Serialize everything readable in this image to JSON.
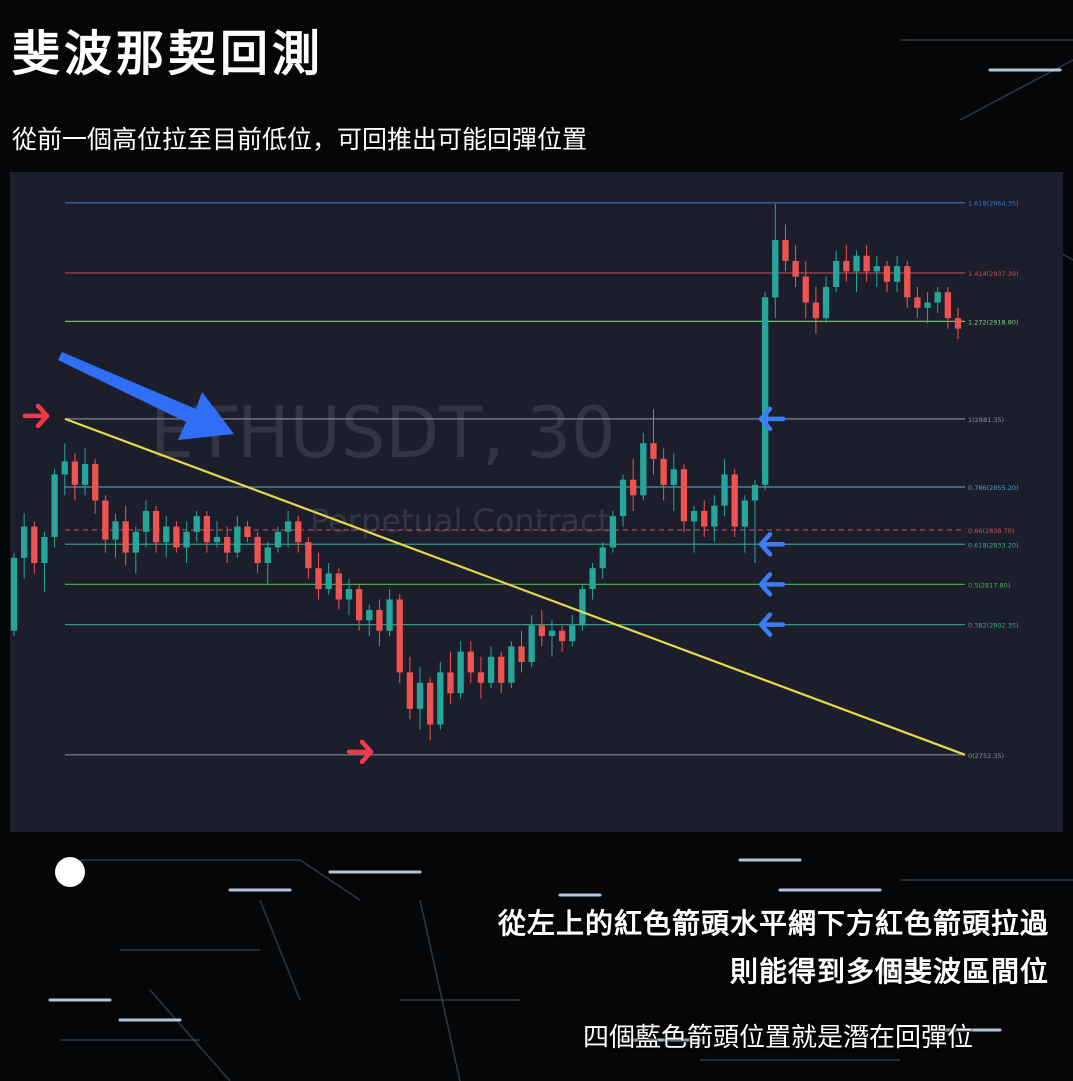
{
  "header": {
    "title": "斐波那契回測",
    "subtitle": "從前一個高位拉至目前低位，可回推出可能回彈位置"
  },
  "notes": {
    "line1": "從左上的紅色箭頭水平網下方紅色箭頭拉過",
    "line2": "則能得到多個斐波區間位",
    "line3": "四個藍色箭頭位置就是潛在回彈位"
  },
  "chart_data": {
    "type": "candlestick",
    "watermark": {
      "symbol": "ETHUSDT, 30",
      "subtitle": "Perpetual Contract"
    },
    "y_range": [
      2740,
      2970
    ],
    "fib_levels": [
      {
        "label": "1.618(2964.35)",
        "price": 2964.35,
        "color": "#3b6fd6"
      },
      {
        "label": "1.414(2937.39)",
        "price": 2937.39,
        "color": "#c0505e"
      },
      {
        "label": "1.272(2918.80)",
        "price": 2918.8,
        "color": "#7ed07e"
      },
      {
        "label": "1(2881.35)",
        "price": 2881.35,
        "color": "#8a8f9c"
      },
      {
        "label": "0.786(2855.20)",
        "price": 2855.2,
        "color": "#4f9fd0"
      },
      {
        "label": "0.66(2838.70)",
        "price": 2838.7,
        "color": "#c0505e",
        "dashed": true
      },
      {
        "label": "0.618(2833.20)",
        "price": 2833.2,
        "color": "#3aa58a"
      },
      {
        "label": "0.5(2817.80)",
        "price": 2817.8,
        "color": "#4caf50"
      },
      {
        "label": "0.382(2802.35)",
        "price": 2802.35,
        "color": "#3aa58a"
      },
      {
        "label": "0(2752.35)",
        "price": 2752.35,
        "color": "#8a8f9c"
      }
    ],
    "trendline": {
      "from_price": 2881.35,
      "to_price": 2752.35,
      "color": "#e6d84a"
    },
    "candles": [
      [
        2800,
        2830,
        2798,
        2828
      ],
      [
        2828,
        2845,
        2820,
        2840
      ],
      [
        2840,
        2842,
        2822,
        2826
      ],
      [
        2826,
        2838,
        2815,
        2836
      ],
      [
        2836,
        2862,
        2832,
        2860
      ],
      [
        2860,
        2872,
        2852,
        2865
      ],
      [
        2865,
        2868,
        2850,
        2856
      ],
      [
        2856,
        2870,
        2852,
        2864
      ],
      [
        2864,
        2866,
        2845,
        2850
      ],
      [
        2850,
        2852,
        2830,
        2835
      ],
      [
        2835,
        2845,
        2828,
        2842
      ],
      [
        2842,
        2848,
        2825,
        2830
      ],
      [
        2830,
        2840,
        2822,
        2838
      ],
      [
        2838,
        2850,
        2832,
        2846
      ],
      [
        2846,
        2848,
        2830,
        2834
      ],
      [
        2834,
        2844,
        2828,
        2840
      ],
      [
        2840,
        2842,
        2830,
        2832
      ],
      [
        2832,
        2842,
        2826,
        2838
      ],
      [
        2838,
        2846,
        2834,
        2844
      ],
      [
        2844,
        2846,
        2830,
        2834
      ],
      [
        2834,
        2842,
        2832,
        2836
      ],
      [
        2836,
        2840,
        2826,
        2830
      ],
      [
        2830,
        2844,
        2828,
        2840
      ],
      [
        2840,
        2842,
        2834,
        2836
      ],
      [
        2836,
        2838,
        2822,
        2826
      ],
      [
        2826,
        2834,
        2818,
        2832
      ],
      [
        2832,
        2840,
        2830,
        2838
      ],
      [
        2838,
        2846,
        2832,
        2842
      ],
      [
        2842,
        2844,
        2830,
        2834
      ],
      [
        2834,
        2836,
        2820,
        2824
      ],
      [
        2824,
        2830,
        2812,
        2816
      ],
      [
        2816,
        2826,
        2814,
        2822
      ],
      [
        2822,
        2824,
        2808,
        2812
      ],
      [
        2812,
        2820,
        2806,
        2816
      ],
      [
        2816,
        2818,
        2800,
        2804
      ],
      [
        2804,
        2810,
        2798,
        2808
      ],
      [
        2808,
        2812,
        2794,
        2800
      ],
      [
        2800,
        2816,
        2798,
        2812
      ],
      [
        2812,
        2814,
        2780,
        2784
      ],
      [
        2784,
        2790,
        2766,
        2770
      ],
      [
        2770,
        2786,
        2762,
        2780
      ],
      [
        2780,
        2782,
        2758,
        2764
      ],
      [
        2764,
        2788,
        2762,
        2784
      ],
      [
        2784,
        2792,
        2772,
        2776
      ],
      [
        2776,
        2796,
        2774,
        2792
      ],
      [
        2792,
        2796,
        2780,
        2784
      ],
      [
        2784,
        2790,
        2774,
        2780
      ],
      [
        2780,
        2794,
        2778,
        2790
      ],
      [
        2790,
        2792,
        2776,
        2780
      ],
      [
        2780,
        2796,
        2778,
        2794
      ],
      [
        2794,
        2800,
        2784,
        2788
      ],
      [
        2788,
        2806,
        2786,
        2802
      ],
      [
        2802,
        2808,
        2794,
        2798
      ],
      [
        2798,
        2804,
        2790,
        2800
      ],
      [
        2800,
        2802,
        2792,
        2796
      ],
      [
        2796,
        2806,
        2794,
        2802
      ],
      [
        2802,
        2818,
        2800,
        2816
      ],
      [
        2816,
        2826,
        2812,
        2824
      ],
      [
        2824,
        2834,
        2820,
        2832
      ],
      [
        2832,
        2846,
        2830,
        2844
      ],
      [
        2844,
        2860,
        2840,
        2858
      ],
      [
        2858,
        2866,
        2846,
        2852
      ],
      [
        2852,
        2876,
        2850,
        2872
      ],
      [
        2872,
        2885,
        2860,
        2866
      ],
      [
        2866,
        2870,
        2850,
        2856
      ],
      [
        2856,
        2868,
        2846,
        2862
      ],
      [
        2862,
        2864,
        2838,
        2842
      ],
      [
        2842,
        2848,
        2830,
        2846
      ],
      [
        2846,
        2850,
        2836,
        2840
      ],
      [
        2840,
        2852,
        2834,
        2848
      ],
      [
        2848,
        2866,
        2844,
        2860
      ],
      [
        2860,
        2862,
        2836,
        2840
      ],
      [
        2840,
        2852,
        2830,
        2850
      ],
      [
        2850,
        2858,
        2826,
        2856
      ],
      [
        2856,
        2930,
        2854,
        2928
      ],
      [
        2928,
        2964,
        2920,
        2950
      ],
      [
        2950,
        2956,
        2938,
        2942
      ],
      [
        2942,
        2948,
        2932,
        2936
      ],
      [
        2936,
        2942,
        2920,
        2926
      ],
      [
        2926,
        2932,
        2914,
        2920
      ],
      [
        2920,
        2936,
        2918,
        2932
      ],
      [
        2932,
        2946,
        2930,
        2942
      ],
      [
        2942,
        2948,
        2934,
        2938
      ],
      [
        2938,
        2946,
        2930,
        2944
      ],
      [
        2944,
        2948,
        2934,
        2938
      ],
      [
        2938,
        2944,
        2932,
        2940
      ],
      [
        2940,
        2942,
        2930,
        2934
      ],
      [
        2934,
        2944,
        2930,
        2940
      ],
      [
        2940,
        2942,
        2924,
        2928
      ],
      [
        2928,
        2932,
        2920,
        2924
      ],
      [
        2924,
        2930,
        2918,
        2926
      ],
      [
        2926,
        2932,
        2922,
        2930
      ],
      [
        2930,
        2932,
        2916,
        2920
      ],
      [
        2920,
        2924,
        2912,
        2916
      ]
    ]
  },
  "colors": {
    "panel_bg": "#1c1f2b",
    "up": "#26a69a",
    "down": "#ef5350",
    "red_arrow": "#ef3b4b",
    "blue_arrow": "#3d7df3",
    "big_arrow": "#2f6ef5"
  }
}
